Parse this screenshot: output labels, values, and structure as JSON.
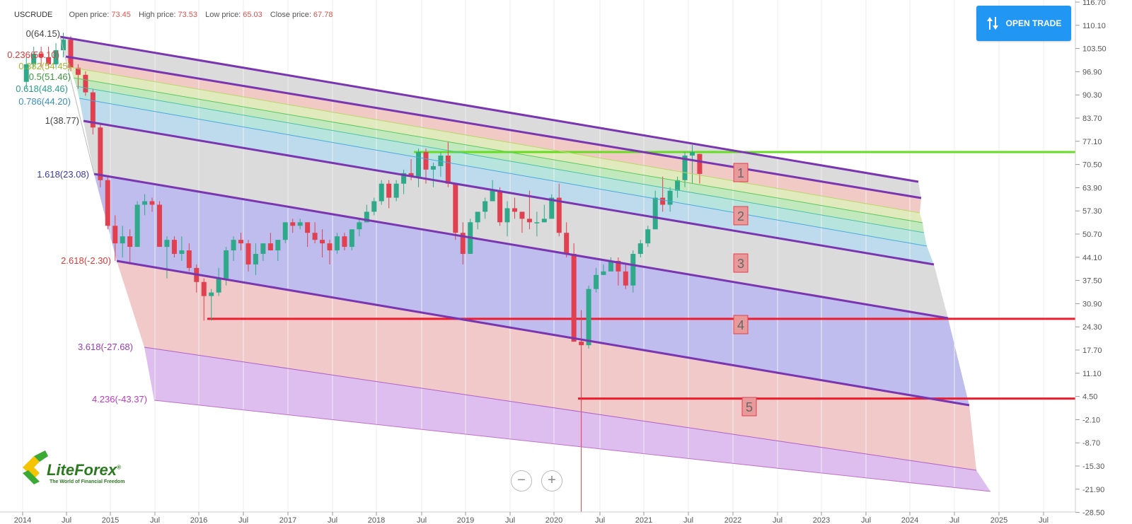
{
  "header": {
    "symbol": "USCRUDE",
    "open_label": "Open price:",
    "open_value": "73.45",
    "high_label": "High price:",
    "high_value": "73.53",
    "low_label": "Low price:",
    "low_value": "65.03",
    "close_label": "Close price:",
    "close_value": "67.78"
  },
  "open_trade_button": {
    "label": "OPEN TRADE",
    "icon": "up-down-arrows-icon"
  },
  "zoom": {
    "out": "−",
    "in": "+"
  },
  "logo": {
    "name": "LiteForex",
    "registered": "®",
    "tagline": "The World of Financial Freedom"
  },
  "price_axis": [
    "116.70",
    "110.10",
    "103.50",
    "96.90",
    "90.30",
    "83.70",
    "77.10",
    "70.50",
    "63.90",
    "57.30",
    "50.70",
    "44.10",
    "37.50",
    "30.90",
    "24.30",
    "17.70",
    "11.10",
    "4.50",
    "-2.10",
    "-8.70",
    "-15.30",
    "-21.90",
    "-28.50"
  ],
  "time_axis": [
    {
      "label": "2014",
      "x": 32
    },
    {
      "label": "Jul",
      "x": 94
    },
    {
      "label": "2015",
      "x": 156
    },
    {
      "label": "Jul",
      "x": 219
    },
    {
      "label": "2016",
      "x": 281
    },
    {
      "label": "Jul",
      "x": 344
    },
    {
      "label": "2017",
      "x": 407
    },
    {
      "label": "Jul",
      "x": 470
    },
    {
      "label": "2018",
      "x": 532
    },
    {
      "label": "Jul",
      "x": 596
    },
    {
      "label": "2019",
      "x": 658
    },
    {
      "label": "Jul",
      "x": 721
    },
    {
      "label": "2020",
      "x": 783
    },
    {
      "label": "Jul",
      "x": 848
    },
    {
      "label": "2021",
      "x": 910
    },
    {
      "label": "Jul",
      "x": 973
    },
    {
      "label": "2022",
      "x": 1036
    },
    {
      "label": "Jul",
      "x": 1099
    },
    {
      "label": "2023",
      "x": 1161
    },
    {
      "label": "Jul",
      "x": 1224
    },
    {
      "label": "2024",
      "x": 1286
    },
    {
      "label": "Jul",
      "x": 1349
    },
    {
      "label": "2025",
      "x": 1412
    },
    {
      "label": "Jul",
      "x": 1475
    }
  ],
  "fib_levels": [
    {
      "label": "0(64.15)",
      "color": "#444444"
    },
    {
      "label": "0.236(58.10)",
      "color": "#e03a3a"
    },
    {
      "label": "0.382(54.45)",
      "color": "#a0b830"
    },
    {
      "label": "0.5(51.46)",
      "color": "#3a9a3a"
    },
    {
      "label": "0.618(48.46)",
      "color": "#2aa08a"
    },
    {
      "label": "0.786(44.20)",
      "color": "#3a8fc8"
    },
    {
      "label": "1(38.77)",
      "color": "#444444"
    },
    {
      "label": "1.618(23.08)",
      "color": "#3a3aa8"
    },
    {
      "label": "2.618(-2.30)",
      "color": "#e03a3a"
    },
    {
      "label": "3.618(-27.68)",
      "color": "#9a3ab8"
    },
    {
      "label": "4.236(-43.37)",
      "color": "#c03ac0"
    }
  ],
  "zone_labels": [
    "1",
    "2",
    "3",
    "4",
    "5"
  ],
  "colors": {
    "channel_line": "#7a35b0",
    "green_line": "#66dd22",
    "red_line": "#ee1c2c",
    "bull": "#2fa98a",
    "bear": "#e04050"
  },
  "chart_data": {
    "type": "candlestick",
    "symbol": "USCRUDE",
    "period": "monthly",
    "y_range": [
      -28.5,
      116.7
    ],
    "horizontal_levels": [
      {
        "value": 74.0,
        "color": "green"
      },
      {
        "value": 26.5,
        "color": "red"
      },
      {
        "value": 3.8,
        "color": "red"
      }
    ],
    "candles": [
      {
        "t": "2014-01",
        "o": 94,
        "c": 99,
        "h": 101,
        "l": 92
      },
      {
        "t": "2014-02",
        "o": 99,
        "c": 102,
        "h": 104,
        "l": 98
      },
      {
        "t": "2014-03",
        "o": 102,
        "c": 101,
        "h": 104,
        "l": 98
      },
      {
        "t": "2014-04",
        "o": 101,
        "c": 99,
        "h": 104,
        "l": 98
      },
      {
        "t": "2014-05",
        "o": 99,
        "c": 103,
        "h": 105,
        "l": 98
      },
      {
        "t": "2014-06",
        "o": 103,
        "c": 106,
        "h": 108,
        "l": 101
      },
      {
        "t": "2014-07",
        "o": 106,
        "c": 98,
        "h": 107,
        "l": 97
      },
      {
        "t": "2014-08",
        "o": 98,
        "c": 96,
        "h": 99,
        "l": 92
      },
      {
        "t": "2014-09",
        "o": 96,
        "c": 91,
        "h": 97,
        "l": 90
      },
      {
        "t": "2014-10",
        "o": 91,
        "c": 81,
        "h": 92,
        "l": 79
      },
      {
        "t": "2014-11",
        "o": 81,
        "c": 66,
        "h": 82,
        "l": 64
      },
      {
        "t": "2014-12",
        "o": 66,
        "c": 53,
        "h": 67,
        "l": 52
      },
      {
        "t": "2015-01",
        "o": 53,
        "c": 48,
        "h": 56,
        "l": 43
      },
      {
        "t": "2015-02",
        "o": 48,
        "c": 50,
        "h": 53,
        "l": 44
      },
      {
        "t": "2015-03",
        "o": 50,
        "c": 47,
        "h": 52,
        "l": 42
      },
      {
        "t": "2015-04",
        "o": 47,
        "c": 59,
        "h": 60,
        "l": 47
      },
      {
        "t": "2015-05",
        "o": 59,
        "c": 60,
        "h": 62,
        "l": 56
      },
      {
        "t": "2015-06",
        "o": 60,
        "c": 59,
        "h": 61,
        "l": 57
      },
      {
        "t": "2015-07",
        "o": 59,
        "c": 47,
        "h": 60,
        "l": 47
      },
      {
        "t": "2015-08",
        "o": 47,
        "c": 49,
        "h": 50,
        "l": 38
      },
      {
        "t": "2015-09",
        "o": 49,
        "c": 45,
        "h": 50,
        "l": 44
      },
      {
        "t": "2015-10",
        "o": 45,
        "c": 46,
        "h": 50,
        "l": 43
      },
      {
        "t": "2015-11",
        "o": 46,
        "c": 41,
        "h": 48,
        "l": 40
      },
      {
        "t": "2015-12",
        "o": 41,
        "c": 37,
        "h": 42,
        "l": 34
      },
      {
        "t": "2016-01",
        "o": 37,
        "c": 33,
        "h": 38,
        "l": 26
      },
      {
        "t": "2016-02",
        "o": 33,
        "c": 34,
        "h": 35,
        "l": 26
      },
      {
        "t": "2016-03",
        "o": 34,
        "c": 38,
        "h": 41,
        "l": 33
      },
      {
        "t": "2016-04",
        "o": 38,
        "c": 46,
        "h": 47,
        "l": 36
      },
      {
        "t": "2016-05",
        "o": 46,
        "c": 49,
        "h": 50,
        "l": 43
      },
      {
        "t": "2016-06",
        "o": 49,
        "c": 48,
        "h": 51,
        "l": 46
      },
      {
        "t": "2016-07",
        "o": 48,
        "c": 42,
        "h": 49,
        "l": 40
      },
      {
        "t": "2016-08",
        "o": 42,
        "c": 45,
        "h": 48,
        "l": 39
      },
      {
        "t": "2016-09",
        "o": 45,
        "c": 48,
        "h": 48,
        "l": 43
      },
      {
        "t": "2016-10",
        "o": 48,
        "c": 46,
        "h": 51,
        "l": 46
      },
      {
        "t": "2016-11",
        "o": 46,
        "c": 49,
        "h": 49,
        "l": 43
      },
      {
        "t": "2016-12",
        "o": 49,
        "c": 54,
        "h": 54,
        "l": 48
      },
      {
        "t": "2017-01",
        "o": 54,
        "c": 53,
        "h": 55,
        "l": 51
      },
      {
        "t": "2017-02",
        "o": 53,
        "c": 54,
        "h": 55,
        "l": 52
      },
      {
        "t": "2017-03",
        "o": 54,
        "c": 51,
        "h": 54,
        "l": 47
      },
      {
        "t": "2017-04",
        "o": 51,
        "c": 49,
        "h": 54,
        "l": 48
      },
      {
        "t": "2017-05",
        "o": 49,
        "c": 48,
        "h": 52,
        "l": 44
      },
      {
        "t": "2017-06",
        "o": 48,
        "c": 46,
        "h": 49,
        "l": 42
      },
      {
        "t": "2017-07",
        "o": 46,
        "c": 50,
        "h": 51,
        "l": 45
      },
      {
        "t": "2017-08",
        "o": 50,
        "c": 47,
        "h": 51,
        "l": 46
      },
      {
        "t": "2017-09",
        "o": 47,
        "c": 52,
        "h": 52,
        "l": 46
      },
      {
        "t": "2017-10",
        "o": 52,
        "c": 54,
        "h": 55,
        "l": 50
      },
      {
        "t": "2017-11",
        "o": 54,
        "c": 57,
        "h": 59,
        "l": 54
      },
      {
        "t": "2017-12",
        "o": 57,
        "c": 60,
        "h": 61,
        "l": 56
      },
      {
        "t": "2018-01",
        "o": 60,
        "c": 65,
        "h": 66,
        "l": 59
      },
      {
        "t": "2018-02",
        "o": 65,
        "c": 61,
        "h": 66,
        "l": 58
      },
      {
        "t": "2018-03",
        "o": 61,
        "c": 65,
        "h": 66,
        "l": 60
      },
      {
        "t": "2018-04",
        "o": 65,
        "c": 68,
        "h": 69,
        "l": 62
      },
      {
        "t": "2018-05",
        "o": 68,
        "c": 67,
        "h": 72,
        "l": 66
      },
      {
        "t": "2018-06",
        "o": 67,
        "c": 74,
        "h": 75,
        "l": 64
      },
      {
        "t": "2018-07",
        "o": 74,
        "c": 69,
        "h": 75,
        "l": 65
      },
      {
        "t": "2018-08",
        "o": 69,
        "c": 70,
        "h": 71,
        "l": 64
      },
      {
        "t": "2018-09",
        "o": 70,
        "c": 73,
        "h": 74,
        "l": 67
      },
      {
        "t": "2018-10",
        "o": 73,
        "c": 65,
        "h": 77,
        "l": 64
      },
      {
        "t": "2018-11",
        "o": 65,
        "c": 51,
        "h": 65,
        "l": 49
      },
      {
        "t": "2018-12",
        "o": 51,
        "c": 45,
        "h": 54,
        "l": 42
      },
      {
        "t": "2019-01",
        "o": 45,
        "c": 54,
        "h": 55,
        "l": 45
      },
      {
        "t": "2019-02",
        "o": 54,
        "c": 57,
        "h": 57,
        "l": 52
      },
      {
        "t": "2019-03",
        "o": 57,
        "c": 60,
        "h": 61,
        "l": 55
      },
      {
        "t": "2019-04",
        "o": 60,
        "c": 63,
        "h": 66,
        "l": 60
      },
      {
        "t": "2019-05",
        "o": 63,
        "c": 54,
        "h": 64,
        "l": 53
      },
      {
        "t": "2019-06",
        "o": 54,
        "c": 58,
        "h": 60,
        "l": 50
      },
      {
        "t": "2019-07",
        "o": 58,
        "c": 57,
        "h": 61,
        "l": 55
      },
      {
        "t": "2019-08",
        "o": 57,
        "c": 55,
        "h": 57,
        "l": 51
      },
      {
        "t": "2019-09",
        "o": 55,
        "c": 54,
        "h": 63,
        "l": 52
      },
      {
        "t": "2019-10",
        "o": 54,
        "c": 54,
        "h": 57,
        "l": 50
      },
      {
        "t": "2019-11",
        "o": 54,
        "c": 55,
        "h": 59,
        "l": 54
      },
      {
        "t": "2019-12",
        "o": 55,
        "c": 61,
        "h": 62,
        "l": 55
      },
      {
        "t": "2020-01",
        "o": 61,
        "c": 51,
        "h": 65,
        "l": 50
      },
      {
        "t": "2020-02",
        "o": 51,
        "c": 45,
        "h": 54,
        "l": 44
      },
      {
        "t": "2020-03",
        "o": 45,
        "c": 20,
        "h": 48,
        "l": 20
      },
      {
        "t": "2020-04",
        "o": 20,
        "c": 19,
        "h": 29,
        "l": -37
      },
      {
        "t": "2020-05",
        "o": 19,
        "c": 35,
        "h": 36,
        "l": 18
      },
      {
        "t": "2020-06",
        "o": 35,
        "c": 39,
        "h": 41,
        "l": 34
      },
      {
        "t": "2020-07",
        "o": 39,
        "c": 40,
        "h": 42,
        "l": 39
      },
      {
        "t": "2020-08",
        "o": 40,
        "c": 43,
        "h": 44,
        "l": 40
      },
      {
        "t": "2020-09",
        "o": 43,
        "c": 40,
        "h": 44,
        "l": 36
      },
      {
        "t": "2020-10",
        "o": 40,
        "c": 36,
        "h": 42,
        "l": 35
      },
      {
        "t": "2020-11",
        "o": 36,
        "c": 45,
        "h": 46,
        "l": 34
      },
      {
        "t": "2020-12",
        "o": 45,
        "c": 48,
        "h": 49,
        "l": 44
      },
      {
        "t": "2021-01",
        "o": 48,
        "c": 52,
        "h": 53,
        "l": 47
      },
      {
        "t": "2021-02",
        "o": 52,
        "c": 61,
        "h": 63,
        "l": 52
      },
      {
        "t": "2021-03",
        "o": 61,
        "c": 59,
        "h": 67,
        "l": 57
      },
      {
        "t": "2021-04",
        "o": 59,
        "c": 63,
        "h": 64,
        "l": 57
      },
      {
        "t": "2021-05",
        "o": 63,
        "c": 66,
        "h": 67,
        "l": 61
      },
      {
        "t": "2021-06",
        "o": 66,
        "c": 73,
        "h": 74,
        "l": 64
      },
      {
        "t": "2021-07",
        "o": 73,
        "c": 74,
        "h": 76,
        "l": 65
      },
      {
        "t": "2021-08",
        "o": 73.45,
        "c": 67.78,
        "h": 73.53,
        "l": 65.03
      }
    ]
  }
}
